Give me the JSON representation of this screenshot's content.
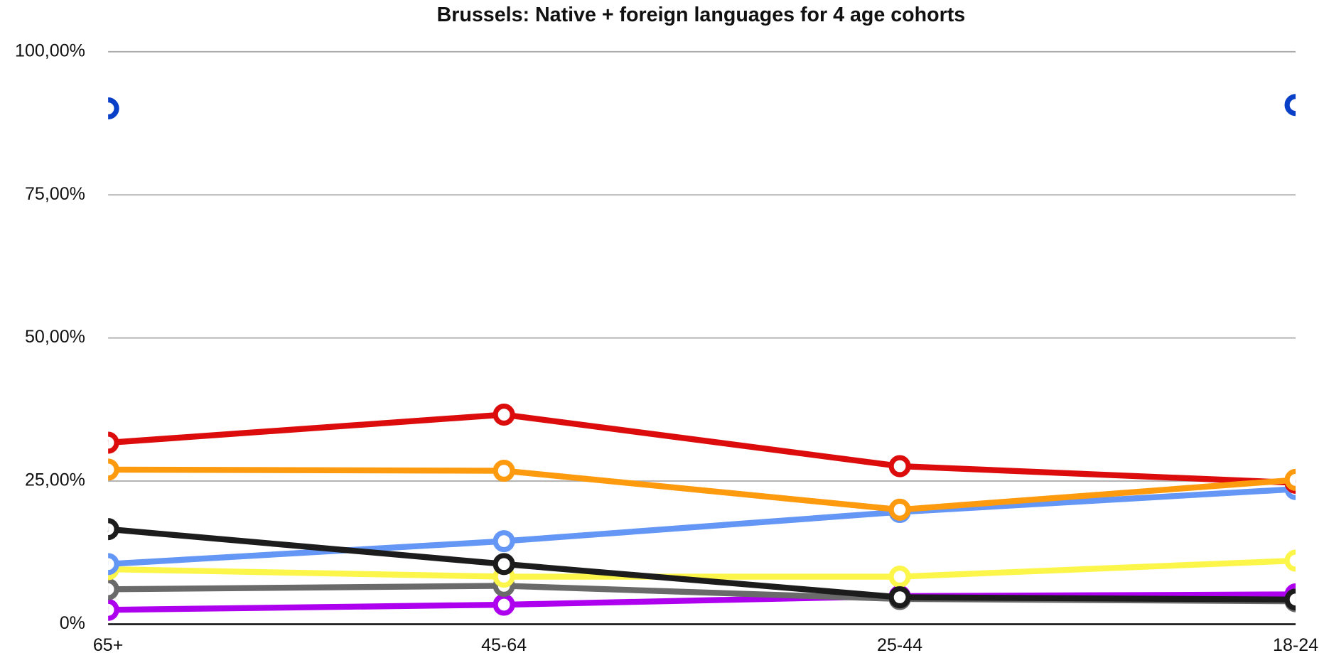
{
  "chart_data": {
    "type": "line",
    "title": "Brussels: Native + foreign languages for 4 age cohorts",
    "categories": [
      "65+",
      "45-64",
      "25-44",
      "18-24"
    ],
    "series": [
      {
        "color": "#0a3fc8",
        "values": [
          90.1,
          null,
          null,
          90.7
        ]
      },
      {
        "color": "#ad00ee",
        "values": [
          2.5,
          3.4,
          4.9,
          5.2
        ]
      },
      {
        "color": "#6a6a6a",
        "values": [
          6.1,
          6.7,
          4.4,
          4.0
        ]
      },
      {
        "color": "#fdf64a",
        "values": [
          9.6,
          8.3,
          8.3,
          11.1
        ]
      },
      {
        "color": "#6496f5",
        "values": [
          10.5,
          14.5,
          19.6,
          23.6
        ]
      },
      {
        "color": "#dd0c0c",
        "values": [
          31.7,
          36.6,
          27.6,
          24.7
        ]
      },
      {
        "color": "#fd9a0e",
        "values": [
          27.0,
          26.8,
          20.0,
          25.2
        ]
      },
      {
        "color": "#1c1c1c",
        "values": [
          16.6,
          10.5,
          4.7,
          4.3
        ]
      }
    ],
    "ylim": [
      0,
      100
    ],
    "yticks": [
      {
        "value": 0,
        "label": "0%"
      },
      {
        "value": 25,
        "label": "25,00%"
      },
      {
        "value": 50,
        "label": "50,00%"
      },
      {
        "value": 75,
        "label": "75,00%"
      },
      {
        "value": 100,
        "label": "100,00%"
      }
    ],
    "grid": true
  }
}
